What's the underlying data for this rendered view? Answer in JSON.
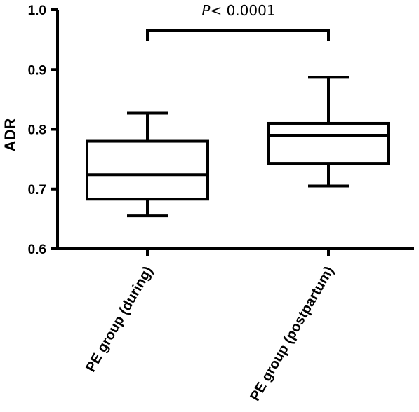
{
  "chart_data": {
    "type": "box",
    "title": "",
    "xlabel": "",
    "ylabel": "ADR",
    "ylim": [
      0.6,
      1.0
    ],
    "yticks": [
      "0.6",
      "0.7",
      "0.8",
      "0.9",
      "1.0"
    ],
    "categories": [
      "PE group (during)",
      "PE group (postpartum)"
    ],
    "boxes": [
      {
        "min": 0.655,
        "q1": 0.683,
        "median": 0.724,
        "q3": 0.78,
        "max": 0.827
      },
      {
        "min": 0.705,
        "q1": 0.743,
        "median": 0.79,
        "q3": 0.81,
        "max": 0.887
      }
    ],
    "significance": {
      "italic": "P",
      "rest": "< 0.0001"
    },
    "grid": false,
    "legend": "none"
  }
}
